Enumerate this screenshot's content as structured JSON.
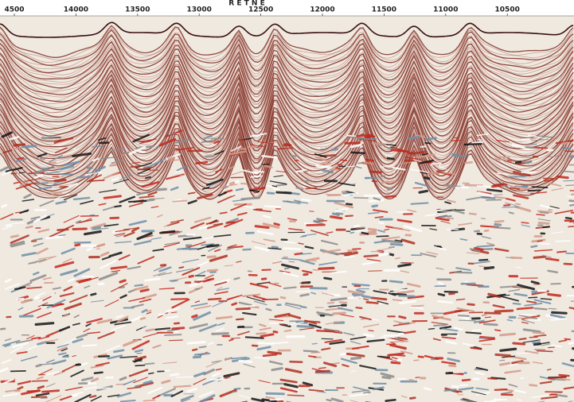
{
  "header": "R E T N E",
  "axis": {
    "ticks": [
      "4500",
      "14000",
      "13500",
      "13000",
      "12500",
      "12000",
      "11500",
      "11000",
      "10500"
    ]
  }
}
